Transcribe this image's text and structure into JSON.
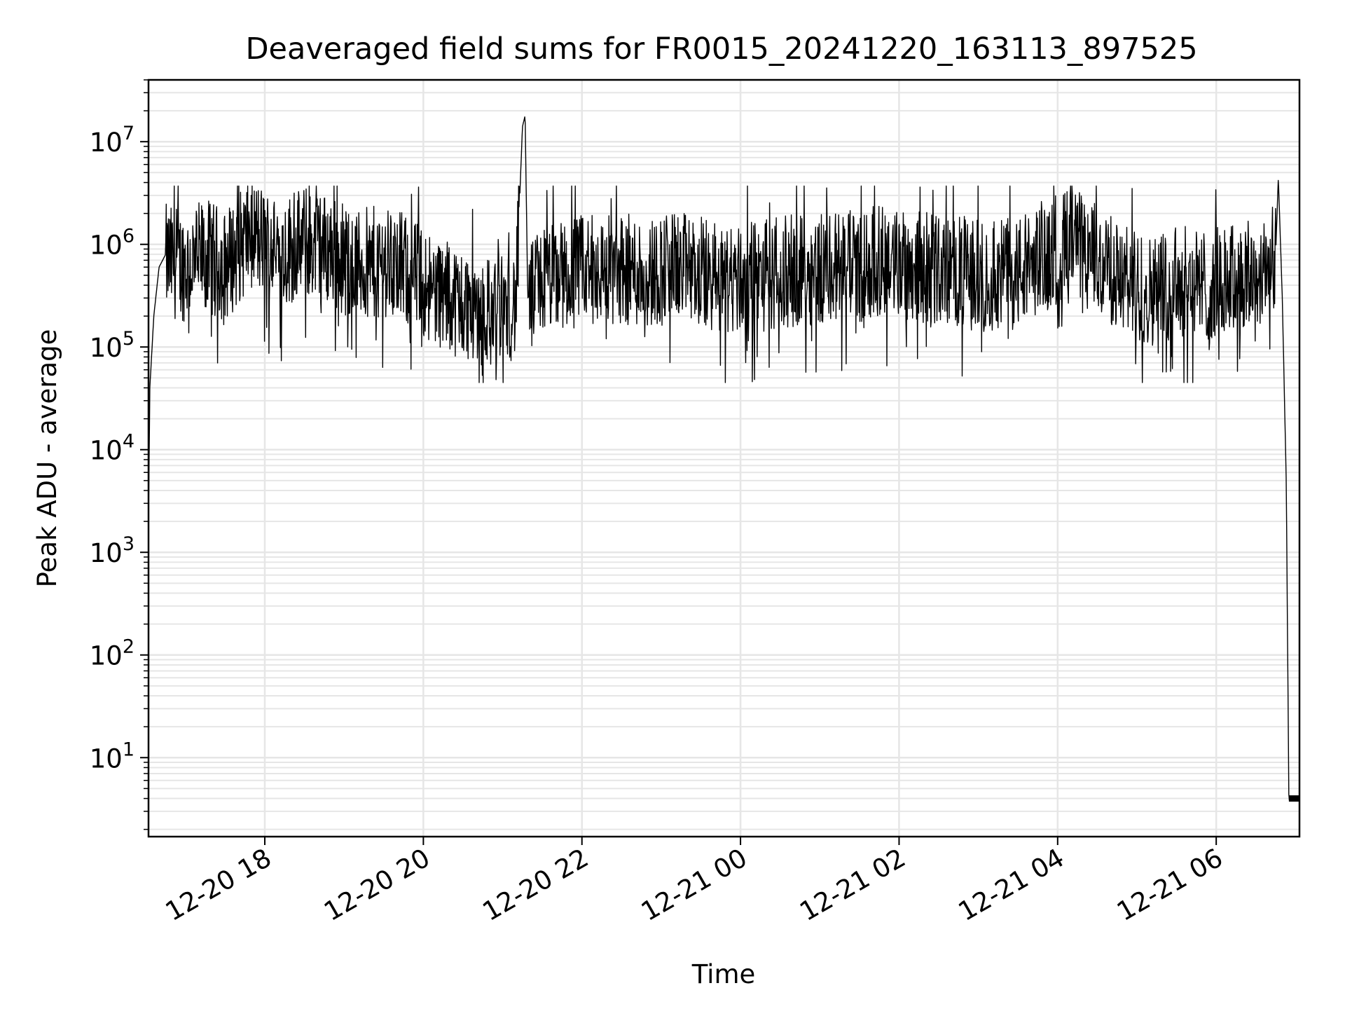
{
  "chart_data": {
    "type": "line",
    "title": "Deaveraged field sums for FR0015_20241220_163113_897525",
    "xlabel": "Time",
    "ylabel": "Peak ADU - average",
    "yscale": "log",
    "grid": true,
    "line_color": "#000000",
    "grid_color": "#e6e6e6",
    "xlim": [
      "2024-12-20 16:32",
      "2024-12-21 07:03"
    ],
    "ylim": [
      1.7,
      40000000
    ],
    "x_ticks": [
      {
        "label": "12-20 18",
        "t": "2024-12-20 18:00"
      },
      {
        "label": "12-20 20",
        "t": "2024-12-20 20:00"
      },
      {
        "label": "12-20 22",
        "t": "2024-12-20 22:00"
      },
      {
        "label": "12-21 00",
        "t": "2024-12-21 00:00"
      },
      {
        "label": "12-21 02",
        "t": "2024-12-21 02:00"
      },
      {
        "label": "12-21 04",
        "t": "2024-12-21 04:00"
      },
      {
        "label": "12-21 06",
        "t": "2024-12-21 06:00"
      }
    ],
    "y_ticks": [
      {
        "base": "10",
        "exp": "1",
        "value": 10
      },
      {
        "base": "10",
        "exp": "2",
        "value": 100
      },
      {
        "base": "10",
        "exp": "3",
        "value": 1000
      },
      {
        "base": "10",
        "exp": "4",
        "value": 10000
      },
      {
        "base": "10",
        "exp": "5",
        "value": 100000
      },
      {
        "base": "10",
        "exp": "6",
        "value": 1000000
      },
      {
        "base": "10",
        "exp": "7",
        "value": 10000000
      }
    ],
    "x": [
      "2024-12-20 16:32",
      "2024-12-20 16:33",
      "2024-12-20 16:36",
      "2024-12-20 16:40",
      "2024-12-20 16:45",
      "2024-12-20 17:00",
      "2024-12-20 17:15",
      "2024-12-20 17:30",
      "2024-12-20 17:50",
      "2024-12-20 18:10",
      "2024-12-20 18:30",
      "2024-12-20 18:50",
      "2024-12-20 19:10",
      "2024-12-20 19:30",
      "2024-12-20 19:50",
      "2024-12-20 20:10",
      "2024-12-20 20:30",
      "2024-12-20 20:50",
      "2024-12-20 21:10",
      "2024-12-20 21:15",
      "2024-12-20 21:17",
      "2024-12-20 21:19",
      "2024-12-20 21:30",
      "2024-12-20 21:50",
      "2024-12-20 22:10",
      "2024-12-20 22:30",
      "2024-12-20 22:50",
      "2024-12-20 23:10",
      "2024-12-20 23:30",
      "2024-12-20 23:50",
      "2024-12-21 00:10",
      "2024-12-21 00:30",
      "2024-12-21 00:50",
      "2024-12-21 01:10",
      "2024-12-21 01:30",
      "2024-12-21 01:50",
      "2024-12-21 02:10",
      "2024-12-21 02:30",
      "2024-12-21 02:50",
      "2024-12-21 03:10",
      "2024-12-21 03:30",
      "2024-12-21 03:50",
      "2024-12-21 04:10",
      "2024-12-21 04:30",
      "2024-12-21 04:50",
      "2024-12-21 05:10",
      "2024-12-21 05:30",
      "2024-12-21 05:50",
      "2024-12-21 06:10",
      "2024-12-21 06:30",
      "2024-12-21 06:45",
      "2024-12-21 06:47",
      "2024-12-21 06:50",
      "2024-12-21 06:53",
      "2024-12-21 06:55",
      "2024-12-21 06:57",
      "2024-12-21 07:00",
      "2024-12-21 07:03"
    ],
    "series": [
      {
        "values": [
          2000,
          40000,
          200000,
          600000,
          800000,
          700000,
          900000,
          700000,
          1500000,
          900000,
          1200000,
          1000000,
          700000,
          800000,
          600000,
          400000,
          300000,
          250000,
          300000,
          14000000,
          18000000,
          300000,
          500000,
          600000,
          650000,
          650000,
          600000,
          700000,
          600000,
          500000,
          550000,
          600000,
          650000,
          700000,
          700000,
          800000,
          700000,
          650000,
          600000,
          550000,
          600000,
          900000,
          1200000,
          800000,
          500000,
          400000,
          500000,
          450000,
          500000,
          600000,
          800000,
          4500000,
          300000,
          5000,
          3.8,
          4.2,
          4,
          4
        ],
        "noise_band": {
          "upper_typical": 1500000,
          "lower_typical": 150000,
          "lower_extreme": 45000,
          "upper_extreme": 3700000
        }
      }
    ]
  }
}
